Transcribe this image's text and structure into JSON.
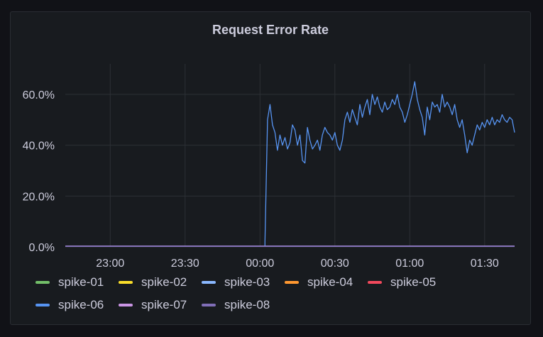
{
  "panel": {
    "title": "Request Error Rate"
  },
  "colors": {
    "background": "#111217",
    "panel": "#181b1f",
    "grid": "#2c3035",
    "text": "#ccccdc"
  },
  "chart_data": {
    "type": "line",
    "title": "Request Error Rate",
    "xlabel": "",
    "ylabel": "",
    "y_unit": "percent",
    "ylim": [
      0,
      72
    ],
    "y_ticks": [
      "0.0%",
      "20.0%",
      "40.0%",
      "60.0%"
    ],
    "x_ticks": [
      "23:00",
      "23:30",
      "00:00",
      "00:30",
      "01:00",
      "01:30"
    ],
    "x_range": [
      "22:42",
      "01:42"
    ],
    "grid": true,
    "legend_placement": "bottom",
    "series": [
      {
        "name": "spike-01",
        "color": "#73bf69",
        "points": [
          [
            "22:42",
            0.2
          ],
          [
            "01:42",
            0.2
          ]
        ]
      },
      {
        "name": "spike-02",
        "color": "#fade2a",
        "points": [
          [
            "22:42",
            0.2
          ],
          [
            "01:42",
            0.2
          ]
        ]
      },
      {
        "name": "spike-03",
        "color": "#8ab8ff",
        "points": [
          [
            "22:42",
            0.3
          ],
          [
            "01:42",
            0.3
          ]
        ]
      },
      {
        "name": "spike-04",
        "color": "#ff9830",
        "points": [
          [
            "22:42",
            0.2
          ],
          [
            "01:42",
            0.2
          ]
        ]
      },
      {
        "name": "spike-05",
        "color": "#f2495c",
        "points": [
          [
            "22:42",
            0.2
          ],
          [
            "01:42",
            0.2
          ]
        ]
      },
      {
        "name": "spike-06",
        "color": "#5794f2",
        "points": [
          [
            "22:42",
            0.2
          ],
          [
            "00:02",
            0.2
          ],
          [
            "00:02",
            2.0
          ],
          [
            "00:03",
            50.0
          ],
          [
            "00:04",
            56.0
          ],
          [
            "00:05",
            48.0
          ],
          [
            "00:06",
            45.0
          ],
          [
            "00:07",
            38.0
          ],
          [
            "00:08",
            44.0
          ],
          [
            "00:09",
            40.0
          ],
          [
            "00:10",
            43.0
          ],
          [
            "00:11",
            38.5
          ],
          [
            "00:12",
            41.0
          ],
          [
            "00:13",
            48.0
          ],
          [
            "00:14",
            46.0
          ],
          [
            "00:15",
            40.0
          ],
          [
            "00:16",
            44.0
          ],
          [
            "00:17",
            34.0
          ],
          [
            "00:18",
            33.0
          ],
          [
            "00:19",
            47.0
          ],
          [
            "00:20",
            42.0
          ],
          [
            "00:21",
            38.5
          ],
          [
            "00:22",
            40.0
          ],
          [
            "00:23",
            42.0
          ],
          [
            "00:24",
            38.0
          ],
          [
            "00:25",
            44.0
          ],
          [
            "00:26",
            47.0
          ],
          [
            "00:27",
            45.0
          ],
          [
            "00:28",
            44.0
          ],
          [
            "00:29",
            42.0
          ],
          [
            "00:30",
            45.0
          ],
          [
            "00:31",
            40.0
          ],
          [
            "00:32",
            38.0
          ],
          [
            "00:33",
            42.0
          ],
          [
            "00:34",
            50.0
          ],
          [
            "00:35",
            53.0
          ],
          [
            "00:36",
            49.0
          ],
          [
            "00:37",
            54.0
          ],
          [
            "00:38",
            51.0
          ],
          [
            "00:39",
            48.0
          ],
          [
            "00:40",
            56.0
          ],
          [
            "00:41",
            51.0
          ],
          [
            "00:42",
            55.0
          ],
          [
            "00:43",
            58.0
          ],
          [
            "00:44",
            52.0
          ],
          [
            "00:45",
            60.0
          ],
          [
            "00:46",
            56.0
          ],
          [
            "00:47",
            59.0
          ],
          [
            "00:48",
            55.0
          ],
          [
            "00:49",
            53.0
          ],
          [
            "00:50",
            57.0
          ],
          [
            "00:51",
            54.0
          ],
          [
            "00:52",
            55.0
          ],
          [
            "00:53",
            58.0
          ],
          [
            "00:54",
            56.0
          ],
          [
            "00:55",
            60.0
          ],
          [
            "00:56",
            55.0
          ],
          [
            "00:57",
            53.0
          ],
          [
            "00:58",
            49.0
          ],
          [
            "00:59",
            52.0
          ],
          [
            "01:00",
            56.0
          ],
          [
            "01:01",
            60.0
          ],
          [
            "01:02",
            65.0
          ],
          [
            "01:03",
            58.0
          ],
          [
            "01:04",
            54.0
          ],
          [
            "01:05",
            51.0
          ],
          [
            "01:06",
            44.0
          ],
          [
            "01:07",
            55.0
          ],
          [
            "01:08",
            50.0
          ],
          [
            "01:09",
            57.0
          ],
          [
            "01:10",
            55.0
          ],
          [
            "01:11",
            56.0
          ],
          [
            "01:12",
            53.0
          ],
          [
            "01:13",
            60.0
          ],
          [
            "01:14",
            55.0
          ],
          [
            "01:15",
            57.0
          ],
          [
            "01:16",
            55.0
          ],
          [
            "01:17",
            52.0
          ],
          [
            "01:18",
            56.0
          ],
          [
            "01:19",
            50.0
          ],
          [
            "01:20",
            47.0
          ],
          [
            "01:21",
            50.0
          ],
          [
            "01:22",
            44.0
          ],
          [
            "01:23",
            37.0
          ],
          [
            "01:24",
            42.0
          ],
          [
            "01:25",
            40.0
          ],
          [
            "01:26",
            44.0
          ],
          [
            "01:27",
            48.0
          ],
          [
            "01:28",
            46.0
          ],
          [
            "01:29",
            49.0
          ],
          [
            "01:30",
            47.0
          ],
          [
            "01:31",
            50.0
          ],
          [
            "01:32",
            48.0
          ],
          [
            "01:33",
            51.0
          ],
          [
            "01:34",
            48.0
          ],
          [
            "01:35",
            50.0
          ],
          [
            "01:36",
            49.0
          ],
          [
            "01:37",
            52.0
          ],
          [
            "01:38",
            50.0
          ],
          [
            "01:39",
            49.0
          ],
          [
            "01:40",
            51.0
          ],
          [
            "01:41",
            50.0
          ],
          [
            "01:42",
            45.0
          ]
        ]
      },
      {
        "name": "spike-07",
        "color": "#ca95e5",
        "points": [
          [
            "22:42",
            0.3
          ],
          [
            "01:42",
            0.3
          ]
        ]
      },
      {
        "name": "spike-08",
        "color": "#806eb7",
        "points": [
          [
            "22:42",
            0.2
          ],
          [
            "01:42",
            0.2
          ]
        ]
      }
    ]
  }
}
